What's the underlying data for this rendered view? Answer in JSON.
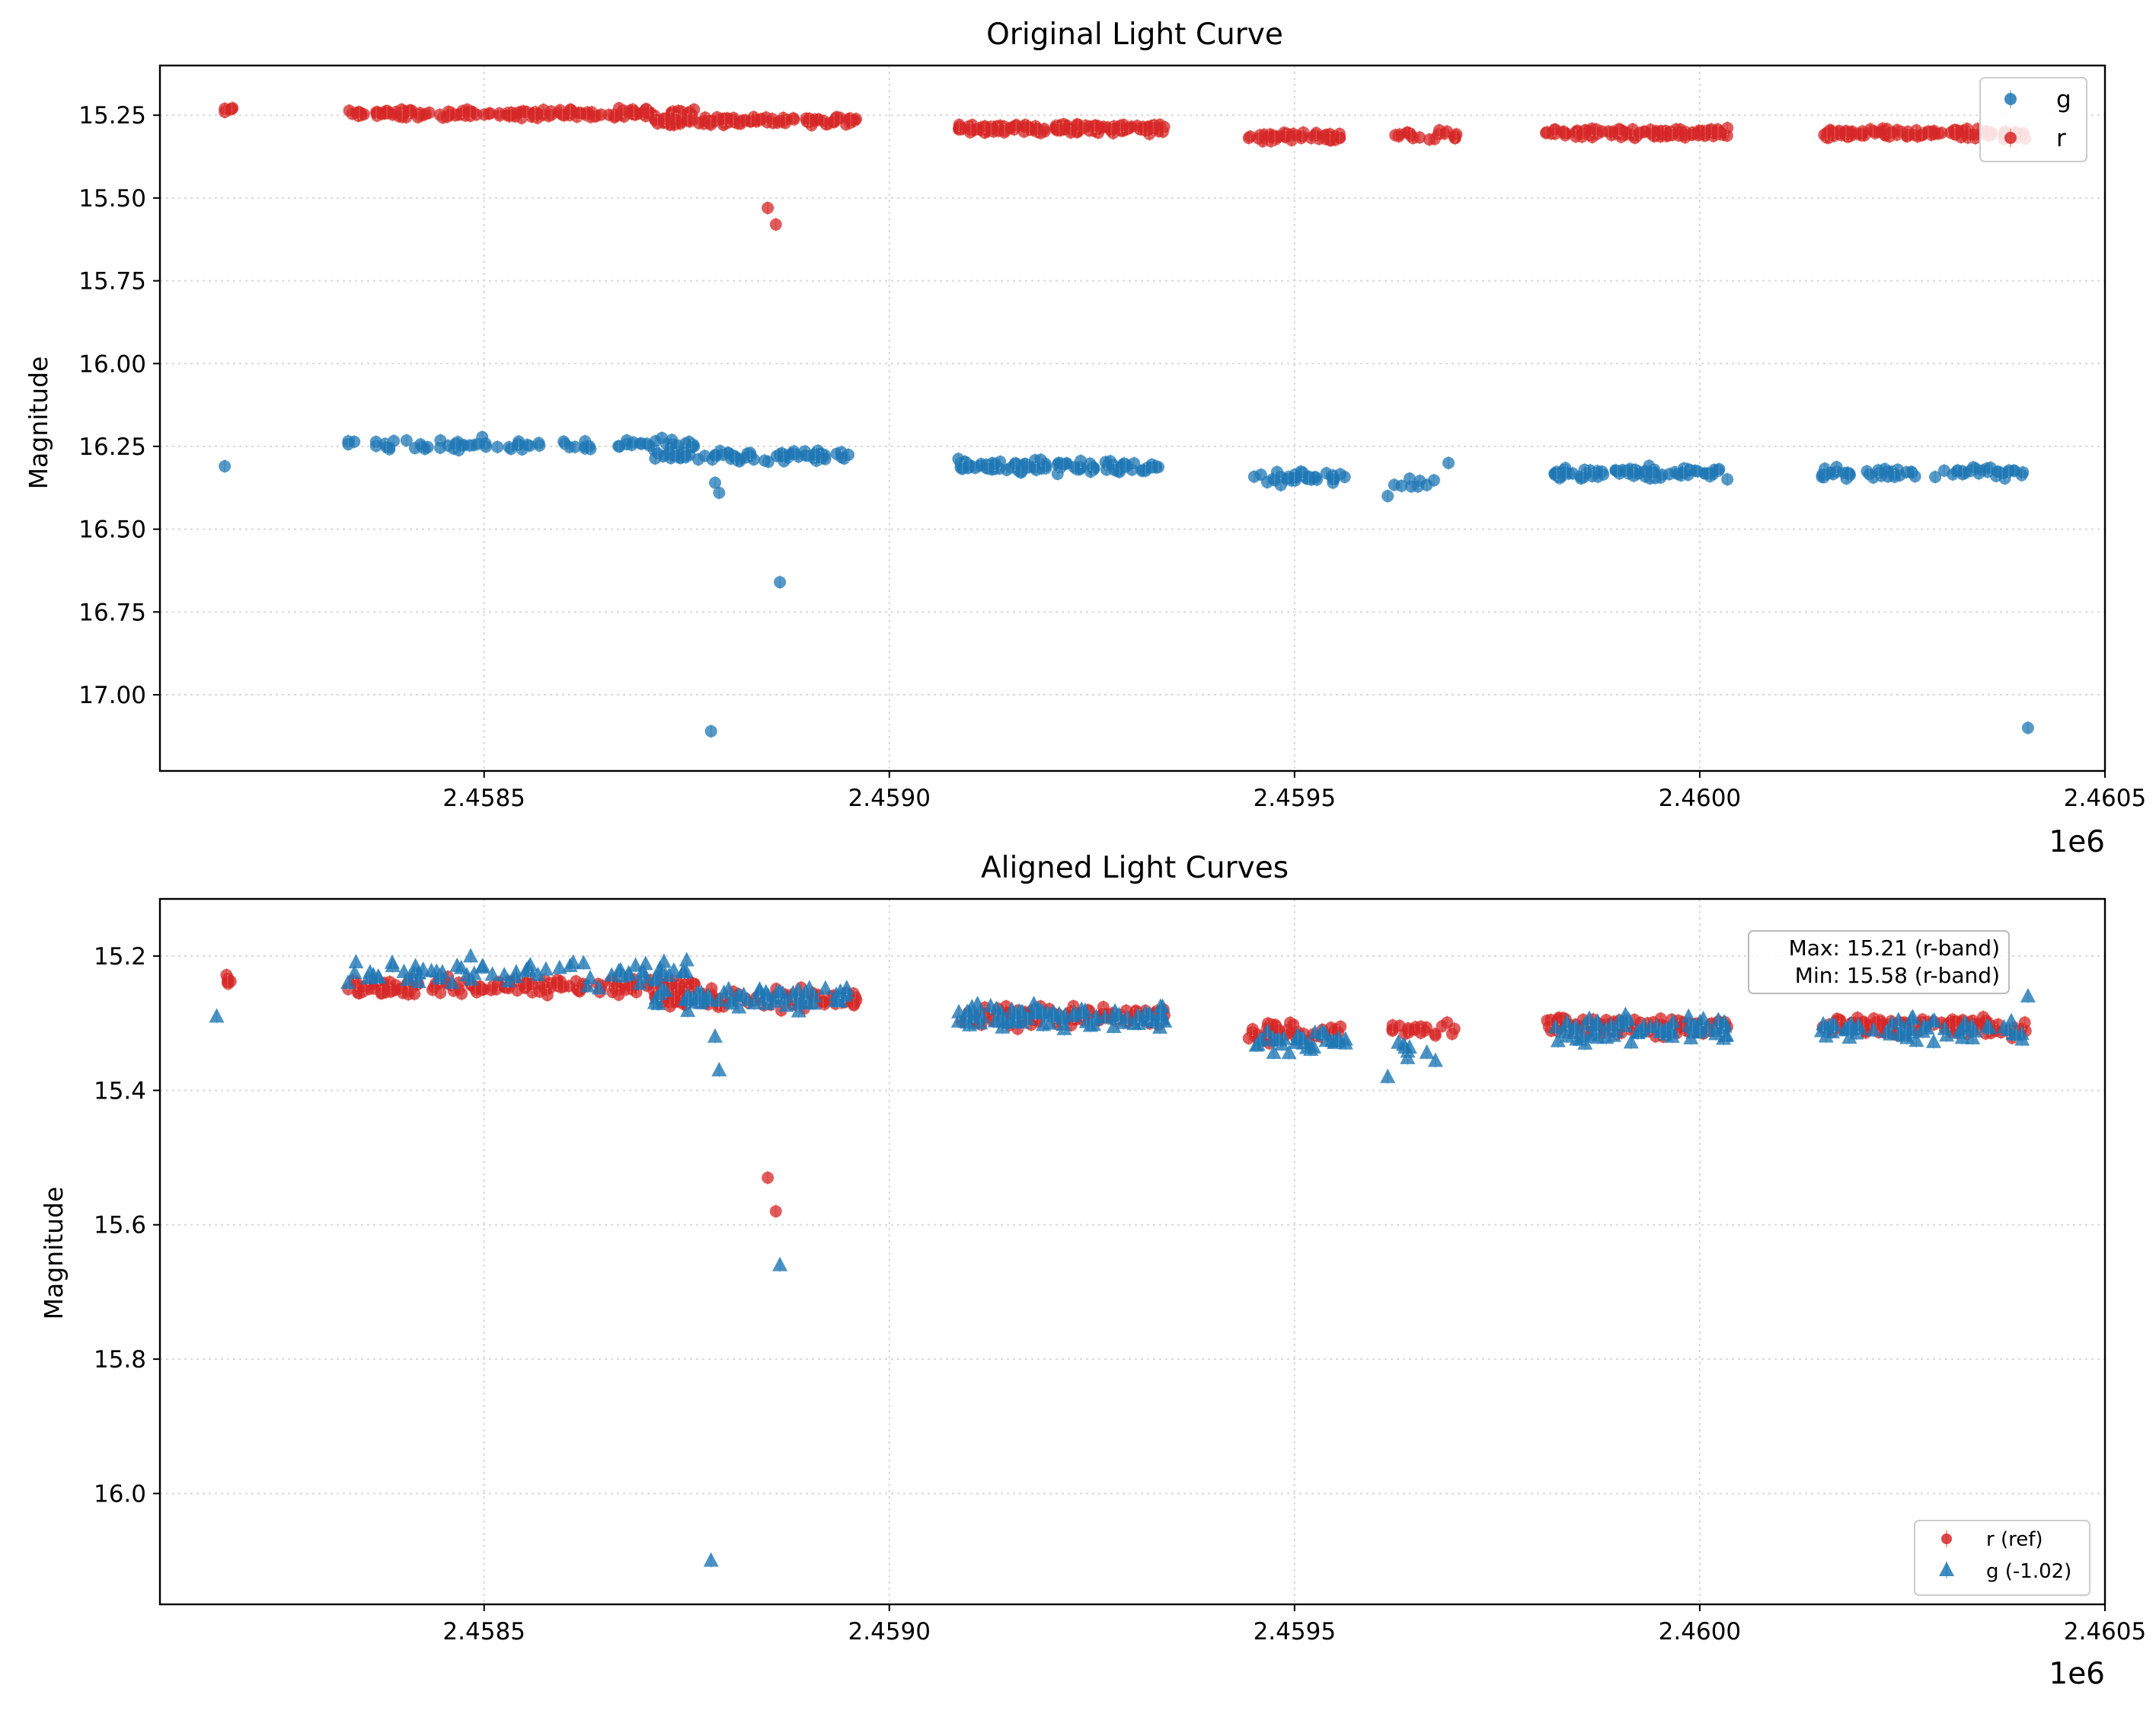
{
  "colors": {
    "g": "#1f77b4",
    "r": "#d62728",
    "annotation_border": "#bbbbbb"
  },
  "chart_data": [
    {
      "type": "scatter",
      "title": "Original Light Curve",
      "xlabel": "",
      "ylabel": "Magnitude",
      "x_offset_label": "1e6",
      "xlim": [
        2458100,
        2460500
      ],
      "ylim": [
        17.23,
        15.1
      ],
      "y_inverted": true,
      "xticks": [
        2458500,
        2459000,
        2459500,
        2460000,
        2460500
      ],
      "xtick_labels": [
        "2.4585",
        "2.4590",
        "2.4595",
        "2.4600",
        "2.4605"
      ],
      "yticks": [
        15.25,
        15.5,
        15.75,
        16.0,
        16.25,
        16.5,
        16.75,
        17.0
      ],
      "ytick_labels": [
        "15.25",
        "15.50",
        "15.75",
        "16.00",
        "16.25",
        "16.50",
        "16.75",
        "17.00"
      ],
      "grid": true,
      "legend_position": "top-right",
      "series": [
        {
          "name": "g",
          "marker": "circle",
          "color": "#1f77b4",
          "clusters": [
            {
              "x": [
                2458180,
                2458180
              ],
              "y_center": 16.31,
              "spread": 0.0,
              "n": 1
            },
            {
              "x": [
                2458330,
                2458760
              ],
              "y_center": 16.245,
              "spread": 0.03,
              "n": 75
            },
            {
              "x": [
                2458710,
                2458950
              ],
              "y_center": 16.28,
              "spread": 0.025,
              "n": 70
            },
            {
              "x": [
                2459085,
                2459340
              ],
              "y_center": 16.31,
              "spread": 0.025,
              "n": 90
            },
            {
              "x": [
                2459450,
                2459565
              ],
              "y_center": 16.345,
              "spread": 0.025,
              "n": 35
            },
            {
              "x": [
                2459620,
                2459680
              ],
              "y_center": 16.36,
              "spread": 0.025,
              "n": 8
            },
            {
              "x": [
                2459820,
                2460035
              ],
              "y_center": 16.33,
              "spread": 0.025,
              "n": 75
            },
            {
              "x": [
                2460150,
                2460400
              ],
              "y_center": 16.33,
              "spread": 0.025,
              "n": 60
            }
          ],
          "outliers": [
            {
              "x": 2458790,
              "y": 16.39
            },
            {
              "x": 2458785,
              "y": 16.36
            },
            {
              "x": 2458865,
              "y": 16.66
            },
            {
              "x": 2458780,
              "y": 17.11
            },
            {
              "x": 2460405,
              "y": 17.1
            },
            {
              "x": 2459690,
              "y": 16.3
            },
            {
              "x": 2459615,
              "y": 16.4
            }
          ]
        },
        {
          "name": "r",
          "marker": "circle",
          "color": "#d62728",
          "clusters": [
            {
              "x": [
                2458180,
                2458190
              ],
              "y_center": 15.235,
              "spread": 0.01,
              "n": 5
            },
            {
              "x": [
                2458330,
                2458760
              ],
              "y_center": 15.245,
              "spread": 0.02,
              "n": 150
            },
            {
              "x": [
                2458710,
                2458960
              ],
              "y_center": 15.265,
              "spread": 0.02,
              "n": 100
            },
            {
              "x": [
                2459085,
                2459340
              ],
              "y_center": 15.29,
              "spread": 0.02,
              "n": 130
            },
            {
              "x": [
                2459440,
                2459560
              ],
              "y_center": 15.315,
              "spread": 0.02,
              "n": 45
            },
            {
              "x": [
                2459620,
                2459700
              ],
              "y_center": 15.31,
              "spread": 0.02,
              "n": 20
            },
            {
              "x": [
                2459810,
                2460035
              ],
              "y_center": 15.305,
              "spread": 0.02,
              "n": 110
            },
            {
              "x": [
                2460150,
                2460405
              ],
              "y_center": 15.305,
              "spread": 0.02,
              "n": 110
            }
          ],
          "outliers": [
            {
              "x": 2458850,
              "y": 15.53
            },
            {
              "x": 2458860,
              "y": 15.58
            }
          ]
        }
      ]
    },
    {
      "type": "scatter",
      "title": "Aligned Light Curves",
      "xlabel": "",
      "ylabel": "Magnitude",
      "x_offset_label": "1e6",
      "xlim": [
        2458100,
        2460500
      ],
      "ylim": [
        16.165,
        15.115
      ],
      "y_inverted": true,
      "xticks": [
        2458500,
        2459000,
        2459500,
        2460000,
        2460500
      ],
      "xtick_labels": [
        "2.4585",
        "2.4590",
        "2.4595",
        "2.4600",
        "2.4605"
      ],
      "yticks": [
        15.2,
        15.4,
        15.6,
        15.8,
        16.0
      ],
      "ytick_labels": [
        "15.2",
        "15.4",
        "15.6",
        "15.8",
        "16.0"
      ],
      "grid": true,
      "legend_position": "bottom-right",
      "annotation_lines": [
        "Max: 15.21 (r-band)",
        "Min: 15.58 (r-band)"
      ],
      "series": [
        {
          "name": "r (ref)",
          "marker": "circle",
          "color": "#d62728",
          "clusters": [
            {
              "x": [
                2458180,
                2458190
              ],
              "y_center": 15.235,
              "spread": 0.01,
              "n": 5
            },
            {
              "x": [
                2458330,
                2458760
              ],
              "y_center": 15.245,
              "spread": 0.02,
              "n": 150
            },
            {
              "x": [
                2458710,
                2458960
              ],
              "y_center": 15.265,
              "spread": 0.02,
              "n": 100
            },
            {
              "x": [
                2459085,
                2459340
              ],
              "y_center": 15.29,
              "spread": 0.02,
              "n": 130
            },
            {
              "x": [
                2459440,
                2459560
              ],
              "y_center": 15.315,
              "spread": 0.02,
              "n": 45
            },
            {
              "x": [
                2459620,
                2459700
              ],
              "y_center": 15.31,
              "spread": 0.02,
              "n": 20
            },
            {
              "x": [
                2459810,
                2460035
              ],
              "y_center": 15.305,
              "spread": 0.02,
              "n": 110
            },
            {
              "x": [
                2460150,
                2460405
              ],
              "y_center": 15.305,
              "spread": 0.02,
              "n": 110
            }
          ],
          "outliers": [
            {
              "x": 2458850,
              "y": 15.53
            },
            {
              "x": 2458860,
              "y": 15.58
            }
          ]
        },
        {
          "name": "g (-1.02)",
          "marker": "triangle",
          "color": "#1f77b4",
          "clusters": [
            {
              "x": [
                2458170,
                2458170
              ],
              "y_center": 15.29,
              "spread": 0.0,
              "n": 1
            },
            {
              "x": [
                2458330,
                2458760
              ],
              "y_center": 15.225,
              "spread": 0.03,
              "n": 75
            },
            {
              "x": [
                2458710,
                2458950
              ],
              "y_center": 15.26,
              "spread": 0.025,
              "n": 70
            },
            {
              "x": [
                2459085,
                2459340
              ],
              "y_center": 15.29,
              "spread": 0.025,
              "n": 90
            },
            {
              "x": [
                2459450,
                2459565
              ],
              "y_center": 15.325,
              "spread": 0.025,
              "n": 35
            },
            {
              "x": [
                2459620,
                2459680
              ],
              "y_center": 15.34,
              "spread": 0.025,
              "n": 8
            },
            {
              "x": [
                2459820,
                2460035
              ],
              "y_center": 15.31,
              "spread": 0.025,
              "n": 75
            },
            {
              "x": [
                2460150,
                2460400
              ],
              "y_center": 15.31,
              "spread": 0.025,
              "n": 60
            }
          ],
          "outliers": [
            {
              "x": 2458785,
              "y": 15.32
            },
            {
              "x": 2458790,
              "y": 15.37
            },
            {
              "x": 2458865,
              "y": 15.66
            },
            {
              "x": 2458780,
              "y": 16.1
            },
            {
              "x": 2459615,
              "y": 15.38
            },
            {
              "x": 2460405,
              "y": 15.26
            },
            {
              "x": 2458840,
              "y": 15.25
            }
          ]
        }
      ]
    }
  ]
}
